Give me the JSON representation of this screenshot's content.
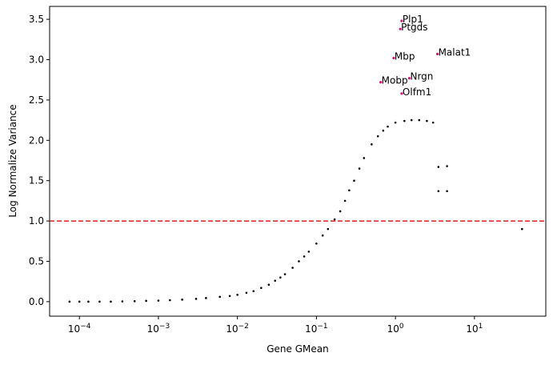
{
  "chart_data": {
    "type": "scatter",
    "xlabel": "Gene GMean",
    "ylabel": "Log Normalize Variance",
    "xscale": "log",
    "xlim": [
      4.2e-05,
      80
    ],
    "ylim": [
      -0.18,
      3.66
    ],
    "xticks": [
      {
        "value": 0.0001,
        "label": "10−4"
      },
      {
        "value": 0.001,
        "label": "10−3"
      },
      {
        "value": 0.01,
        "label": "10−2"
      },
      {
        "value": 0.1,
        "label": "10−1"
      },
      {
        "value": 1,
        "label": "100"
      },
      {
        "value": 10,
        "label": "101"
      }
    ],
    "yticks": [
      {
        "value": 0,
        "label": "0.0"
      },
      {
        "value": 0.5,
        "label": "0.5"
      },
      {
        "value": 1,
        "label": "1.0"
      },
      {
        "value": 1.5,
        "label": "1.5"
      },
      {
        "value": 2,
        "label": "2.0"
      },
      {
        "value": 2.5,
        "label": "2.5"
      },
      {
        "value": 3,
        "label": "3.0"
      },
      {
        "value": 3.5,
        "label": "3.5"
      }
    ],
    "threshold": 1,
    "threshold_color": "#e41a1c",
    "point_color": "#000000",
    "x": [
      7.5e-05,
      0.0001,
      0.00013,
      0.00018,
      0.00025,
      0.00035,
      0.0005,
      0.0007,
      0.001,
      0.0014,
      0.002,
      0.003,
      0.004,
      0.006,
      0.008,
      0.01,
      0.013,
      0.016,
      0.02,
      0.025,
      0.03,
      0.035,
      0.04,
      0.05,
      0.06,
      0.07,
      0.08,
      0.1,
      0.12,
      0.14,
      0.17,
      0.2,
      0.23,
      0.26,
      0.3,
      0.35,
      0.4,
      0.5,
      0.6,
      0.7,
      0.8,
      1.0,
      1.3,
      1.6,
      2.0,
      2.5,
      3.0,
      3.5,
      4.5,
      4.5,
      3.5,
      40
    ],
    "y": [
      0,
      0,
      0,
      0,
      0,
      0.003,
      0.005,
      0.01,
      0.013,
      0.018,
      0.025,
      0.035,
      0.045,
      0.06,
      0.07,
      0.085,
      0.11,
      0.13,
      0.17,
      0.21,
      0.26,
      0.3,
      0.34,
      0.42,
      0.5,
      0.56,
      0.62,
      0.72,
      0.82,
      0.9,
      1.02,
      1.12,
      1.25,
      1.38,
      1.5,
      1.65,
      1.78,
      1.95,
      2.05,
      2.12,
      2.17,
      2.22,
      2.24,
      2.25,
      2.25,
      2.24,
      2.22,
      1.37,
      1.68,
      1.37,
      1.67,
      0.9
    ],
    "genes": {
      "color": "#d6187c",
      "names": [
        "Plp1",
        "Ptgds",
        "Malat1",
        "Mbp",
        "Nrgn",
        "Mobp",
        "Olfm1"
      ],
      "x": [
        1.2,
        1.15,
        3.4,
        0.95,
        1.5,
        0.65,
        1.2
      ],
      "y": [
        3.48,
        3.38,
        3.07,
        3.02,
        2.77,
        2.72,
        2.58
      ]
    }
  }
}
